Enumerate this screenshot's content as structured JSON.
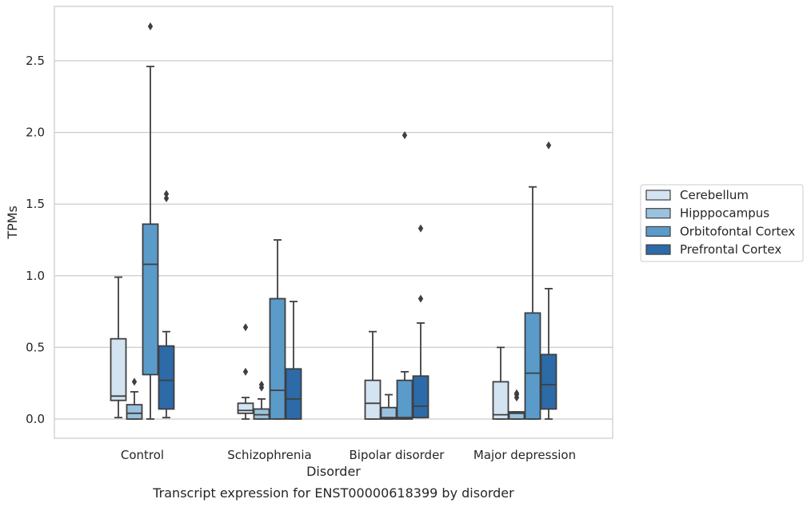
{
  "chart_data": {
    "type": "box",
    "title": "",
    "caption": "Transcript expression for ENST00000618399 by disorder",
    "xlabel": "Disorder",
    "ylabel": "TPMs",
    "ylim": [
      -0.13,
      2.88
    ],
    "yticks": [
      "0.0",
      "0.5",
      "1.0",
      "1.5",
      "2.0",
      "2.5"
    ],
    "yticks_values": [
      0,
      0.5,
      1.0,
      1.5,
      2.0,
      2.5
    ],
    "grid": "horizontal",
    "legend_placement": "right",
    "categories": [
      "Control",
      "Schizophrenia",
      "Bipolar disorder",
      "Major depression"
    ],
    "series": [
      {
        "name": "Cerebellum",
        "color": "#d4e3f2",
        "boxes": [
          {
            "whislo": 0.01,
            "q1": 0.13,
            "med": 0.16,
            "q3": 0.56,
            "whishi": 0.99,
            "fliers": []
          },
          {
            "whislo": 0.0,
            "q1": 0.04,
            "med": 0.06,
            "q3": 0.11,
            "whishi": 0.15,
            "fliers": [
              0.33,
              0.64
            ]
          },
          {
            "whislo": 0.0,
            "q1": 0.0,
            "med": 0.11,
            "q3": 0.27,
            "whishi": 0.61,
            "fliers": []
          },
          {
            "whislo": 0.0,
            "q1": 0.0,
            "med": 0.03,
            "q3": 0.26,
            "whishi": 0.5,
            "fliers": []
          }
        ]
      },
      {
        "name": "Hipppocampus",
        "color": "#9ac2de",
        "boxes": [
          {
            "whislo": 0.0,
            "q1": 0.0,
            "med": 0.04,
            "q3": 0.1,
            "whishi": 0.19,
            "fliers": [
              0.26
            ]
          },
          {
            "whislo": 0.0,
            "q1": 0.0,
            "med": 0.03,
            "q3": 0.07,
            "whishi": 0.14,
            "fliers": [
              0.22,
              0.24
            ]
          },
          {
            "whislo": 0.0,
            "q1": 0.0,
            "med": 0.01,
            "q3": 0.08,
            "whishi": 0.17,
            "fliers": []
          },
          {
            "whislo": 0.0,
            "q1": 0.0,
            "med": 0.04,
            "q3": 0.05,
            "whishi": 0.05,
            "fliers": [
              0.15,
              0.17,
              0.18
            ]
          }
        ]
      },
      {
        "name": "Orbitofontal Cortex",
        "color": "#5a9bc9",
        "boxes": [
          {
            "whislo": 0.0,
            "q1": 0.31,
            "med": 1.08,
            "q3": 1.36,
            "whishi": 2.46,
            "fliers": [
              2.74
            ]
          },
          {
            "whislo": 0.0,
            "q1": 0.0,
            "med": 0.2,
            "q3": 0.84,
            "whishi": 1.25,
            "fliers": []
          },
          {
            "whislo": 0.0,
            "q1": 0.0,
            "med": 0.01,
            "q3": 0.27,
            "whishi": 0.33,
            "fliers": [
              1.98
            ]
          },
          {
            "whislo": 0.0,
            "q1": 0.0,
            "med": 0.32,
            "q3": 0.74,
            "whishi": 1.62,
            "fliers": []
          }
        ]
      },
      {
        "name": "Prefrontal Cortex",
        "color": "#2c6aa8",
        "boxes": [
          {
            "whislo": 0.01,
            "q1": 0.07,
            "med": 0.27,
            "q3": 0.51,
            "whishi": 0.61,
            "fliers": [
              1.54,
              1.57
            ]
          },
          {
            "whislo": 0.0,
            "q1": 0.0,
            "med": 0.14,
            "q3": 0.35,
            "whishi": 0.82,
            "fliers": []
          },
          {
            "whislo": 0.01,
            "q1": 0.01,
            "med": 0.09,
            "q3": 0.3,
            "whishi": 0.67,
            "fliers": [
              0.84,
              1.33
            ]
          },
          {
            "whislo": 0.0,
            "q1": 0.07,
            "med": 0.24,
            "q3": 0.45,
            "whishi": 0.91,
            "fliers": [
              1.91
            ]
          }
        ]
      }
    ]
  }
}
